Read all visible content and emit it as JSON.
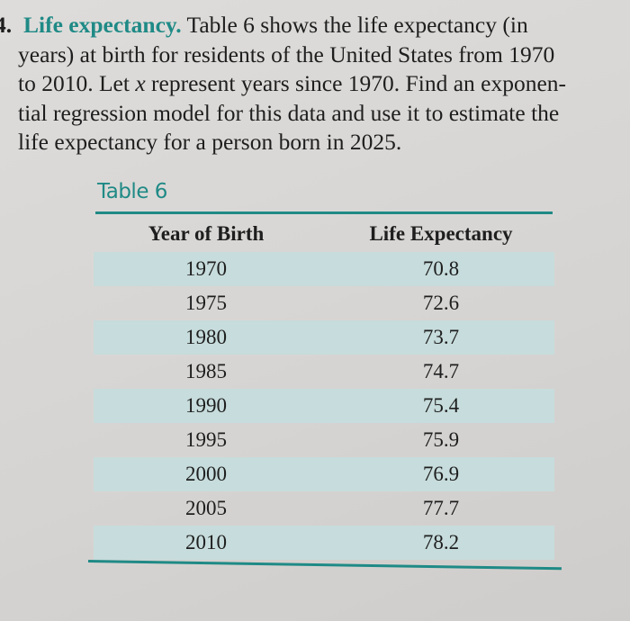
{
  "problem": {
    "number": "4.",
    "heading": "Life expectancy.",
    "lines": [
      " Table 6 shows the life expectancy (in",
      "years) at birth for residents of the United States from 1970",
      "to 2010. Let ",
      "tial regression model for this data and use it to estimate the",
      "life expectancy for a person born in 2025."
    ],
    "line3_var": "x",
    "line3_rest": " represent years since 1970. Find an exponen-"
  },
  "table": {
    "title": "Table 6",
    "headers": [
      "Year of Birth",
      "Life Expectancy"
    ],
    "rows": [
      [
        "1970",
        "70.8"
      ],
      [
        "1975",
        "72.6"
      ],
      [
        "1980",
        "73.7"
      ],
      [
        "1985",
        "74.7"
      ],
      [
        "1990",
        "75.4"
      ],
      [
        "1995",
        "75.9"
      ],
      [
        "2000",
        "76.9"
      ],
      [
        "2005",
        "77.7"
      ],
      [
        "2010",
        "78.2"
      ]
    ]
  },
  "colors": {
    "accent": "#1f8a86",
    "row_shade": "#c7dcdc",
    "page": "#d9d7d5"
  }
}
